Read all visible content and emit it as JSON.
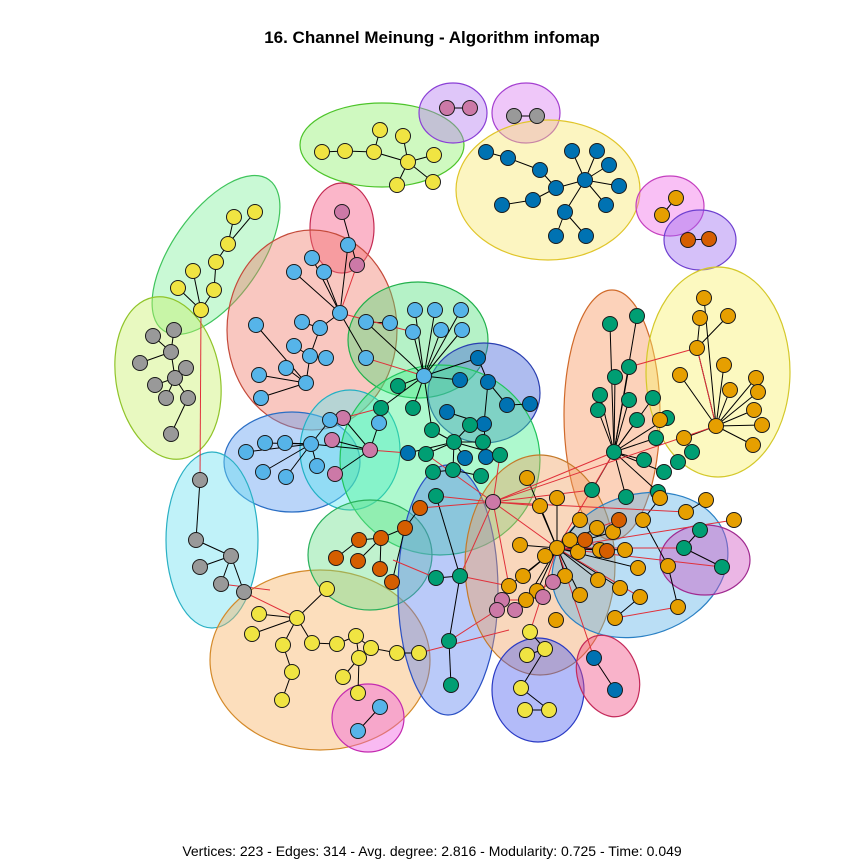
{
  "title": "16. Channel Meinung - Algorithm infomap",
  "footer": "Vertices: 223 - Edges: 314 - Avg. degree: 2.816 - Modularity: 0.725 - Time: 0.049",
  "colors": {
    "inter_community_edge": "#e0303a",
    "intra_community_edge": "#000000",
    "node_stroke": "#1a1a1a",
    "node_palette": [
      "#f0e442",
      "#e69f00",
      "#56b4e9",
      "#009e73",
      "#0072b2",
      "#d55e00",
      "#cc79a7",
      "#999999"
    ]
  }
}
